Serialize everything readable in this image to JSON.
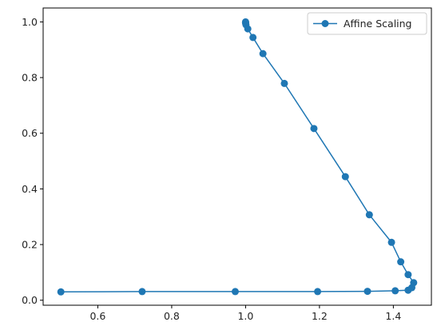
{
  "chart_data": {
    "type": "line",
    "series": [
      {
        "name": "Affine Scaling",
        "color": "#1f77b4",
        "marker": "circle",
        "x": [
          0.5,
          0.72,
          0.972,
          1.195,
          1.33,
          1.405,
          1.44,
          1.45,
          1.455,
          1.44,
          1.42,
          1.395,
          1.335,
          1.27,
          1.185,
          1.105,
          1.047,
          1.02,
          1.006,
          1.001,
          1.0,
          1.0,
          1.0
        ],
        "y": [
          0.03,
          0.031,
          0.031,
          0.031,
          0.032,
          0.034,
          0.036,
          0.045,
          0.063,
          0.092,
          0.138,
          0.208,
          0.307,
          0.444,
          0.617,
          0.779,
          0.886,
          0.944,
          0.975,
          0.99,
          0.996,
          0.998,
          1.0
        ]
      }
    ],
    "xlim": [
      0.452,
      1.503
    ],
    "ylim": [
      -0.018,
      1.05
    ],
    "xticks": [
      0.6,
      0.8,
      1.0,
      1.2,
      1.4
    ],
    "xtick_labels": [
      "0.6",
      "0.8",
      "1.0",
      "1.2",
      "1.4"
    ],
    "yticks": [
      0.0,
      0.2,
      0.4,
      0.6,
      0.8,
      1.0
    ],
    "ytick_labels": [
      "0.0",
      "0.2",
      "0.4",
      "0.6",
      "0.8",
      "1.0"
    ],
    "title": "",
    "xlabel": "",
    "ylabel": "",
    "grid": false,
    "legend_position": "top-right"
  }
}
